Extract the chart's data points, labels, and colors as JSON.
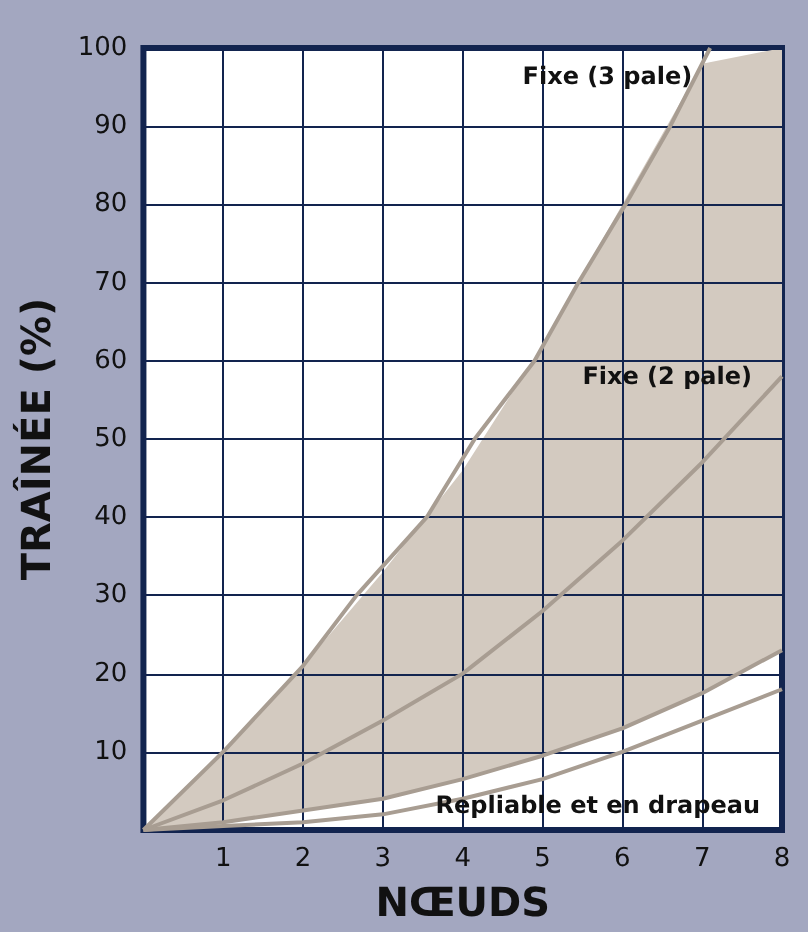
{
  "chart_data": {
    "type": "line",
    "xlabel": "NŒUDS",
    "ylabel": "TRAÎNÉE (%)",
    "xlim": [
      0,
      8
    ],
    "xticks": [
      1,
      2,
      3,
      4,
      5,
      6,
      7,
      8
    ],
    "ylim": [
      0,
      100
    ],
    "yticks": [
      10,
      20,
      30,
      40,
      50,
      60,
      70,
      80,
      90,
      100
    ],
    "grid": true,
    "marker": "none",
    "line_style": "solid",
    "series": [
      {
        "name": "Fixe (3 pale)",
        "color": "#a89d92",
        "x": [
          0,
          1,
          2,
          2.67,
          3.55,
          4.15,
          4.9,
          5.45,
          6.04,
          6.6,
          7.1
        ],
        "values": [
          0,
          10,
          21,
          30,
          40,
          50,
          60,
          70,
          80,
          90,
          100
        ]
      },
      {
        "name": "Fixe (2 pale)",
        "color": "#a89d92",
        "x": [
          0,
          1,
          2,
          3,
          4,
          5,
          6,
          7,
          8
        ],
        "values": [
          0,
          3.8,
          8.5,
          14,
          20,
          28,
          37,
          47,
          58
        ],
        "lower": [
          0,
          1,
          2.5,
          4,
          6.5,
          9.5,
          13,
          17.5,
          23
        ],
        "upper": [
          0,
          10,
          21,
          33,
          46,
          62,
          80,
          98,
          100
        ]
      },
      {
        "color": "#a89d92",
        "x": [
          0,
          1,
          2,
          3,
          4,
          5,
          6,
          7,
          8
        ],
        "values": [
          0,
          1,
          2.5,
          4,
          6.5,
          9.5,
          13,
          17.5,
          23
        ]
      },
      {
        "name": "Repliable et en drapeau",
        "color": "#a89d92",
        "x": [
          0,
          1,
          2,
          3,
          4,
          5,
          6,
          7,
          8
        ],
        "values": [
          0,
          0.5,
          1,
          2,
          4,
          6.5,
          10,
          14,
          18
        ]
      }
    ]
  }
}
